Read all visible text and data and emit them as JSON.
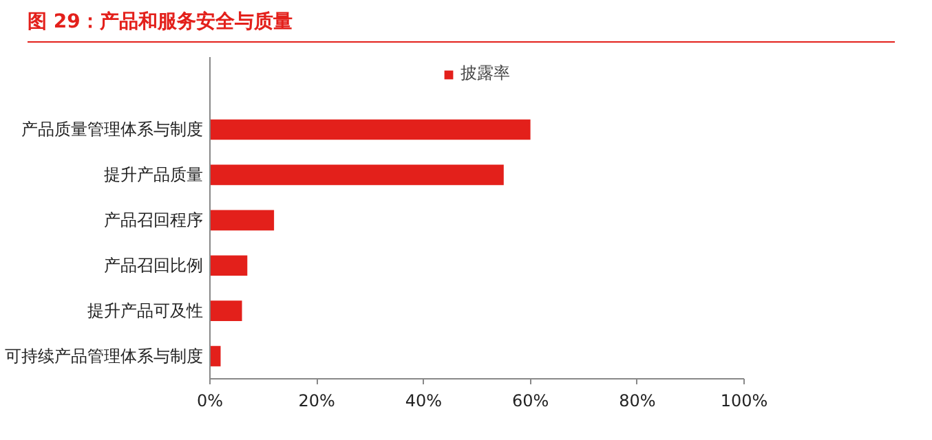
{
  "chart_data": {
    "type": "bar",
    "orientation": "horizontal",
    "title": "图 29：产品和服务安全与质量",
    "categories": [
      "产品质量管理体系与制度",
      "提升产品质量",
      "产品召回程序",
      "产品召回比例",
      "提升产品可及性",
      "可持续产品管理体系与制度"
    ],
    "series": [
      {
        "name": "披露率",
        "color": "#e3201b",
        "values": [
          60,
          55,
          12,
          7,
          6,
          2
        ]
      }
    ],
    "xlim": [
      0,
      100
    ],
    "xticks": [
      {
        "value": 0,
        "label": "0%"
      },
      {
        "value": 20,
        "label": "20%"
      },
      {
        "value": 40,
        "label": "40%"
      },
      {
        "value": 60,
        "label": "60%"
      },
      {
        "value": 80,
        "label": "80%"
      },
      {
        "value": 100,
        "label": "100%"
      }
    ],
    "grid": false,
    "legend": "top"
  }
}
